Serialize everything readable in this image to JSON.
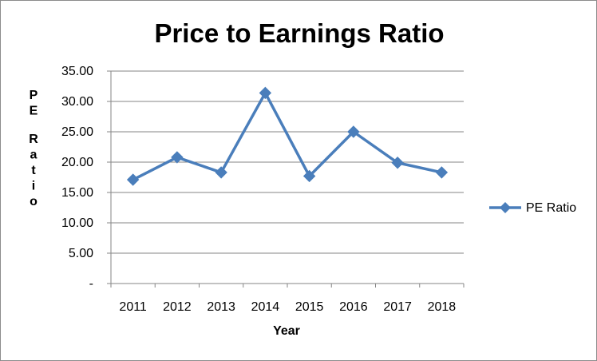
{
  "chart_data": {
    "type": "line",
    "title": "Price to Earnings Ratio",
    "xlabel": "Year",
    "ylabel": "PE Ratio",
    "categories": [
      "2011",
      "2012",
      "2013",
      "2014",
      "2015",
      "2016",
      "2017",
      "2018"
    ],
    "series": [
      {
        "name": "PE Ratio",
        "color": "#4a7ebb",
        "values": [
          17.1,
          20.8,
          18.3,
          31.4,
          17.7,
          25.0,
          19.9,
          18.3
        ]
      }
    ],
    "ylim": [
      0,
      35
    ],
    "yticks": [
      {
        "value": 0,
        "label": "-"
      },
      {
        "value": 5,
        "label": "5.00"
      },
      {
        "value": 10,
        "label": "10.00"
      },
      {
        "value": 15,
        "label": "15.00"
      },
      {
        "value": 20,
        "label": "20.00"
      },
      {
        "value": 25,
        "label": "25.00"
      },
      {
        "value": 30,
        "label": "30.00"
      },
      {
        "value": 35,
        "label": "35.00"
      }
    ],
    "grid": true,
    "gridline_color": "#868686",
    "legend_position": "right"
  }
}
